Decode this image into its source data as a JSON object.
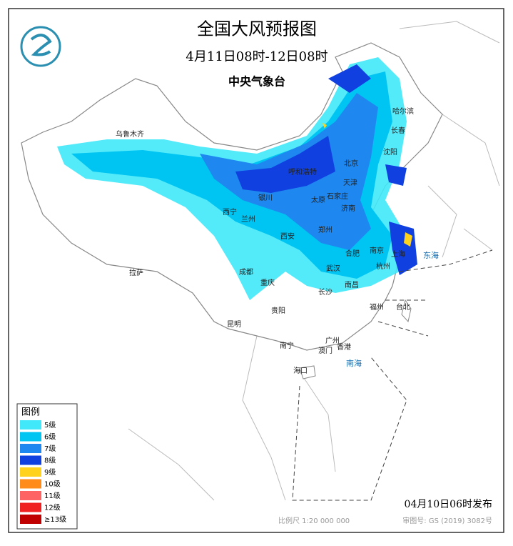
{
  "header": {
    "title": "全国大风预报图",
    "time": "4月11日08时-12日08时",
    "issuer": "中央气象台"
  },
  "legend": {
    "title": "图例",
    "items": [
      {
        "label": "5级",
        "color": "#40e8fa"
      },
      {
        "label": "6级",
        "color": "#00c4f2"
      },
      {
        "label": "7级",
        "color": "#1e88f0"
      },
      {
        "label": "8级",
        "color": "#1040e0"
      },
      {
        "label": "9级",
        "color": "#ffd21e"
      },
      {
        "label": "10级",
        "color": "#ff8c1a"
      },
      {
        "label": "11级",
        "color": "#ff6464"
      },
      {
        "label": "12级",
        "color": "#f02020"
      },
      {
        "label": "≥13级",
        "color": "#c00000"
      }
    ]
  },
  "cities": [
    "乌鲁木齐",
    "哈尔滨",
    "长春",
    "沈阳",
    "北京",
    "天津",
    "呼和浩特",
    "石家庄",
    "太原",
    "济南",
    "银川",
    "西宁",
    "兰州",
    "西安",
    "郑州",
    "合肥",
    "南京",
    "上海",
    "杭州",
    "武汉",
    "成都",
    "重庆",
    "拉萨",
    "长沙",
    "南昌",
    "贵阳",
    "福州",
    "台北",
    "昆明",
    "南宁",
    "广州",
    "澳门",
    "香港",
    "海口"
  ],
  "seas": [
    "南海",
    "东海"
  ],
  "footer": {
    "published": "04月10日06时发布",
    "scale": "比例尺 1:20 000 000",
    "approval": "审图号: GS (2019) 3082号"
  }
}
